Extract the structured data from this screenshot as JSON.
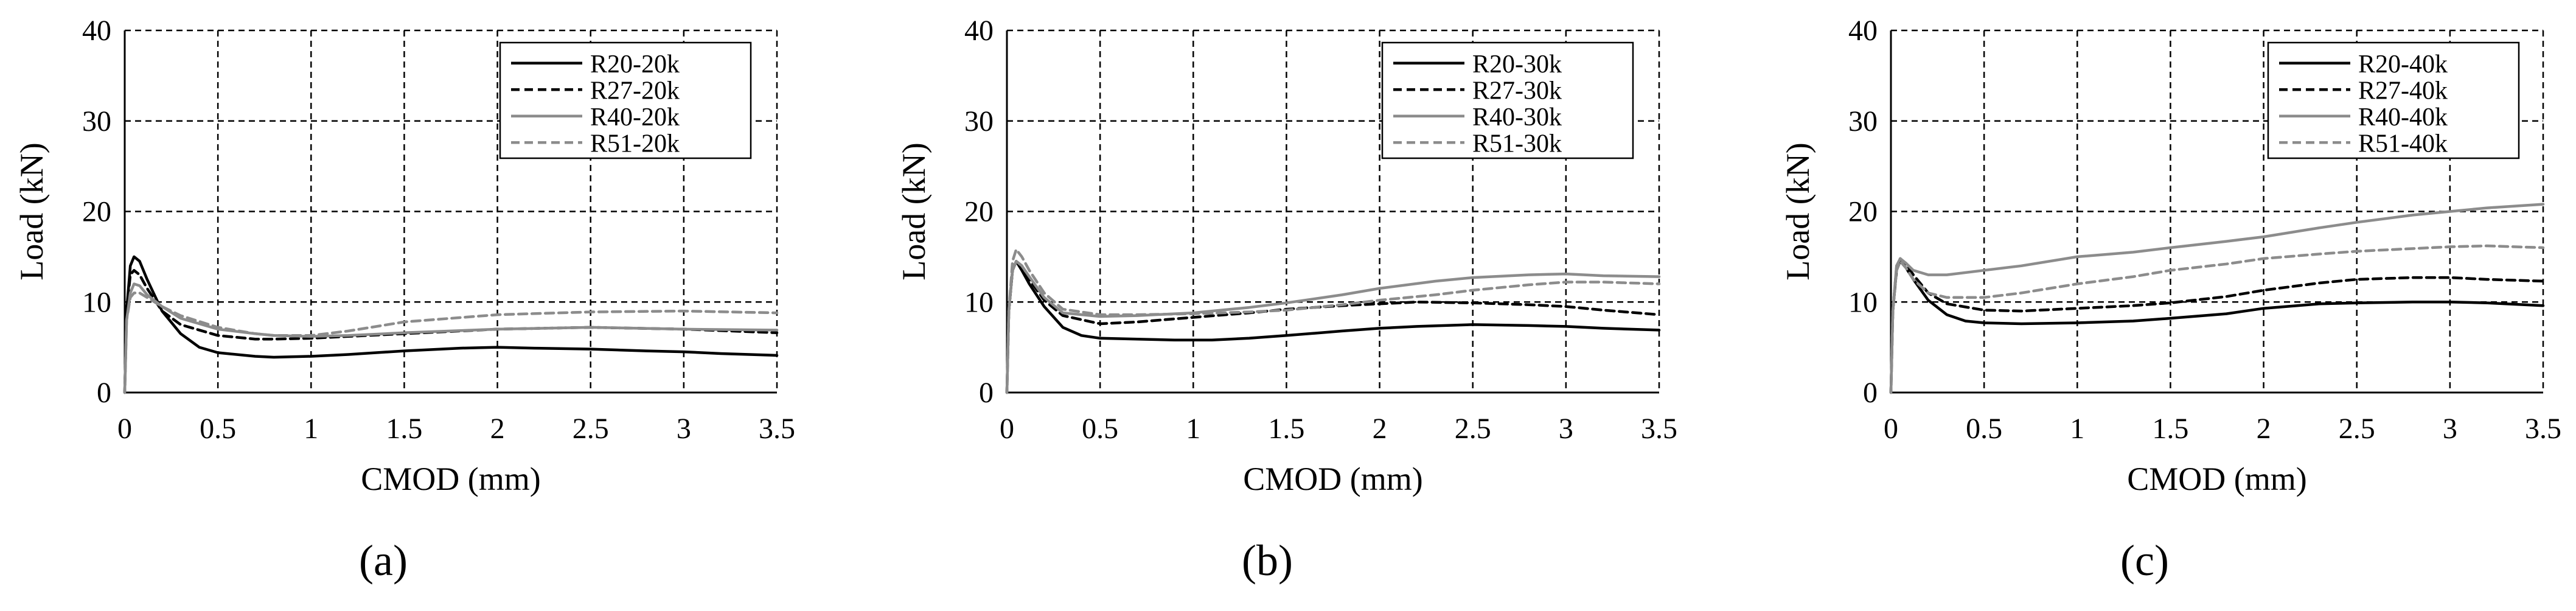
{
  "figure": {
    "panels": [
      "(a)",
      "(b)",
      "(c)"
    ]
  },
  "chart_data": [
    {
      "type": "line",
      "panel_label": "(a)",
      "xlabel": "CMOD (mm)",
      "ylabel": "Load (kN)",
      "xlim": [
        0,
        3.5
      ],
      "ylim": [
        0,
        40
      ],
      "xticks": [
        0,
        0.5,
        1,
        1.5,
        2,
        2.5,
        3,
        3.5
      ],
      "xtick_labels": [
        "0",
        "0.5",
        "1",
        "1.5",
        "2",
        "2.5",
        "3",
        "3.5"
      ],
      "yticks": [
        0,
        10,
        20,
        30,
        40
      ],
      "ytick_labels": [
        "0",
        "10",
        "20",
        "30",
        "40"
      ],
      "grid": true,
      "legend_position": "top-right",
      "series": [
        {
          "name": "R20-20k",
          "style": "solid",
          "color": "#000000",
          "x": [
            0,
            0.01,
            0.03,
            0.05,
            0.08,
            0.12,
            0.2,
            0.3,
            0.4,
            0.5,
            0.7,
            0.8,
            1.0,
            1.2,
            1.5,
            1.8,
            2.0,
            2.2,
            2.5,
            2.8,
            3.0,
            3.2,
            3.5
          ],
          "y": [
            0,
            9,
            14,
            15,
            14.5,
            12.5,
            9,
            6.5,
            5,
            4.4,
            4.0,
            3.9,
            4.0,
            4.2,
            4.6,
            4.9,
            5.0,
            4.9,
            4.8,
            4.6,
            4.5,
            4.3,
            4.1
          ]
        },
        {
          "name": "R27-20k",
          "style": "dashed",
          "color": "#000000",
          "x": [
            0,
            0.01,
            0.03,
            0.05,
            0.08,
            0.12,
            0.2,
            0.3,
            0.5,
            0.7,
            0.8,
            1.0,
            1.2,
            1.5,
            2.0,
            2.5,
            3.0,
            3.5
          ],
          "y": [
            0,
            9,
            13,
            13.5,
            13,
            11.5,
            9,
            7.5,
            6.3,
            5.9,
            5.9,
            6.0,
            6.2,
            6.5,
            7.0,
            7.2,
            7.0,
            6.6
          ]
        },
        {
          "name": "R40-20k",
          "style": "solid",
          "color": "#8c8c8c",
          "x": [
            0,
            0.01,
            0.03,
            0.05,
            0.08,
            0.12,
            0.2,
            0.3,
            0.5,
            0.7,
            0.8,
            1.0,
            1.2,
            1.5,
            2.0,
            2.5,
            3.0,
            3.5
          ],
          "y": [
            0,
            8,
            11,
            12,
            11.8,
            10.8,
            9.5,
            8.2,
            7.0,
            6.5,
            6.3,
            6.2,
            6.3,
            6.6,
            7.0,
            7.2,
            7.0,
            6.9
          ]
        },
        {
          "name": "R51-20k",
          "style": "dashed",
          "color": "#8c8c8c",
          "x": [
            0,
            0.01,
            0.03,
            0.05,
            0.08,
            0.12,
            0.2,
            0.3,
            0.5,
            0.7,
            0.8,
            1.0,
            1.2,
            1.5,
            2.0,
            2.5,
            3.0,
            3.5
          ],
          "y": [
            0,
            8,
            10.5,
            11,
            11,
            10.5,
            9.5,
            8.5,
            7.2,
            6.5,
            6.3,
            6.3,
            6.8,
            7.8,
            8.6,
            8.9,
            9.0,
            8.8
          ]
        }
      ]
    },
    {
      "type": "line",
      "panel_label": "(b)",
      "xlabel": "CMOD (mm)",
      "ylabel": "Load (kN)",
      "xlim": [
        0,
        3.5
      ],
      "ylim": [
        0,
        40
      ],
      "xticks": [
        0,
        0.5,
        1,
        1.5,
        2,
        2.5,
        3,
        3.5
      ],
      "xtick_labels": [
        "0",
        "0.5",
        "1",
        "1.5",
        "2",
        "2.5",
        "3",
        "3.5"
      ],
      "yticks": [
        0,
        10,
        20,
        30,
        40
      ],
      "ytick_labels": [
        "0",
        "10",
        "20",
        "30",
        "40"
      ],
      "grid": true,
      "legend_position": "top-right",
      "series": [
        {
          "name": "R20-30k",
          "style": "solid",
          "color": "#000000",
          "x": [
            0,
            0.01,
            0.03,
            0.05,
            0.08,
            0.12,
            0.2,
            0.3,
            0.4,
            0.5,
            0.7,
            0.9,
            1.1,
            1.3,
            1.5,
            1.8,
            2.0,
            2.2,
            2.5,
            2.8,
            3.0,
            3.2,
            3.5
          ],
          "y": [
            0,
            9,
            13.5,
            14.5,
            13.5,
            12,
            9.5,
            7.2,
            6.3,
            6.0,
            5.9,
            5.8,
            5.8,
            6.0,
            6.3,
            6.8,
            7.1,
            7.3,
            7.5,
            7.4,
            7.3,
            7.1,
            6.9
          ]
        },
        {
          "name": "R27-30k",
          "style": "dashed",
          "color": "#000000",
          "x": [
            0,
            0.01,
            0.03,
            0.05,
            0.08,
            0.12,
            0.2,
            0.3,
            0.5,
            0.7,
            1.0,
            1.3,
            1.5,
            1.8,
            2.0,
            2.2,
            2.5,
            2.8,
            3.0,
            3.2,
            3.5
          ],
          "y": [
            0,
            9,
            13.5,
            14.5,
            14,
            12.5,
            10.2,
            8.5,
            7.6,
            7.8,
            8.3,
            8.8,
            9.2,
            9.6,
            9.8,
            10.0,
            9.9,
            9.7,
            9.5,
            9.1,
            8.6
          ]
        },
        {
          "name": "R40-30k",
          "style": "solid",
          "color": "#8c8c8c",
          "x": [
            0,
            0.01,
            0.03,
            0.05,
            0.08,
            0.12,
            0.2,
            0.3,
            0.5,
            0.7,
            1.0,
            1.3,
            1.5,
            1.8,
            2.0,
            2.3,
            2.5,
            2.8,
            3.0,
            3.2,
            3.5
          ],
          "y": [
            0,
            9,
            13.5,
            14.5,
            14,
            12.8,
            10.5,
            8.8,
            8.4,
            8.5,
            8.8,
            9.4,
            9.9,
            10.8,
            11.5,
            12.3,
            12.7,
            13.0,
            13.1,
            12.9,
            12.8
          ]
        },
        {
          "name": "R51-30k",
          "style": "dashed",
          "color": "#8c8c8c",
          "x": [
            0,
            0.01,
            0.03,
            0.05,
            0.08,
            0.12,
            0.2,
            0.3,
            0.5,
            0.7,
            1.0,
            1.3,
            1.5,
            1.8,
            2.0,
            2.3,
            2.5,
            2.8,
            3.0,
            3.2,
            3.5
          ],
          "y": [
            0,
            9,
            14.5,
            15.8,
            15,
            13.5,
            11,
            9.2,
            8.6,
            8.6,
            8.7,
            8.9,
            9.1,
            9.7,
            10.2,
            10.8,
            11.3,
            11.9,
            12.2,
            12.2,
            12.0
          ]
        }
      ]
    },
    {
      "type": "line",
      "panel_label": "(c)",
      "xlabel": "CMOD (mm)",
      "ylabel": "Load (kN)",
      "xlim": [
        0,
        3.5
      ],
      "ylim": [
        0,
        40
      ],
      "xticks": [
        0,
        0.5,
        1,
        1.5,
        2,
        2.5,
        3,
        3.5
      ],
      "xtick_labels": [
        "0",
        "0.5",
        "1",
        "1.5",
        "2",
        "2.5",
        "3",
        "3.5"
      ],
      "yticks": [
        0,
        10,
        20,
        30,
        40
      ],
      "ytick_labels": [
        "0",
        "10",
        "20",
        "30",
        "40"
      ],
      "grid": true,
      "legend_position": "top-left",
      "series": [
        {
          "name": "R20-40k",
          "style": "solid",
          "color": "#000000",
          "x": [
            0,
            0.01,
            0.03,
            0.05,
            0.08,
            0.12,
            0.2,
            0.3,
            0.4,
            0.5,
            0.7,
            1.0,
            1.3,
            1.5,
            1.8,
            2.0,
            2.3,
            2.5,
            2.8,
            3.0,
            3.2,
            3.5
          ],
          "y": [
            0,
            9,
            13.5,
            14.5,
            13.8,
            12.5,
            10.2,
            8.6,
            7.9,
            7.7,
            7.6,
            7.7,
            7.9,
            8.2,
            8.7,
            9.3,
            9.8,
            9.9,
            10.0,
            10.0,
            9.9,
            9.6
          ]
        },
        {
          "name": "R27-40k",
          "style": "dashed",
          "color": "#000000",
          "x": [
            0,
            0.01,
            0.03,
            0.05,
            0.08,
            0.12,
            0.2,
            0.3,
            0.5,
            0.7,
            1.0,
            1.3,
            1.5,
            1.8,
            2.0,
            2.3,
            2.5,
            2.8,
            3.0,
            3.2,
            3.5
          ],
          "y": [
            0,
            9,
            13.8,
            14.8,
            14.2,
            13,
            11,
            9.8,
            9.1,
            9.0,
            9.3,
            9.6,
            9.9,
            10.6,
            11.3,
            12.1,
            12.5,
            12.7,
            12.7,
            12.5,
            12.3
          ]
        },
        {
          "name": "R40-40k",
          "style": "solid",
          "color": "#8c8c8c",
          "x": [
            0,
            0.01,
            0.03,
            0.05,
            0.08,
            0.12,
            0.2,
            0.3,
            0.5,
            0.7,
            1.0,
            1.3,
            1.5,
            1.8,
            2.0,
            2.3,
            2.5,
            2.8,
            3.0,
            3.2,
            3.5
          ],
          "y": [
            0,
            9,
            14,
            14.8,
            14.3,
            13.5,
            13,
            13,
            13.5,
            14,
            15,
            15.5,
            16,
            16.7,
            17.2,
            18.2,
            18.8,
            19.6,
            20.0,
            20.4,
            20.8
          ]
        },
        {
          "name": "R51-40k",
          "style": "dashed",
          "color": "#8c8c8c",
          "x": [
            0,
            0.01,
            0.03,
            0.05,
            0.08,
            0.12,
            0.2,
            0.3,
            0.5,
            0.7,
            1.0,
            1.3,
            1.5,
            1.8,
            2.0,
            2.3,
            2.5,
            2.8,
            3.0,
            3.2,
            3.5
          ],
          "y": [
            0,
            9,
            13.5,
            14.5,
            13.8,
            12.5,
            11,
            10.5,
            10.5,
            11,
            12,
            12.8,
            13.5,
            14.2,
            14.8,
            15.3,
            15.6,
            15.9,
            16.1,
            16.2,
            16.0
          ]
        }
      ]
    }
  ]
}
